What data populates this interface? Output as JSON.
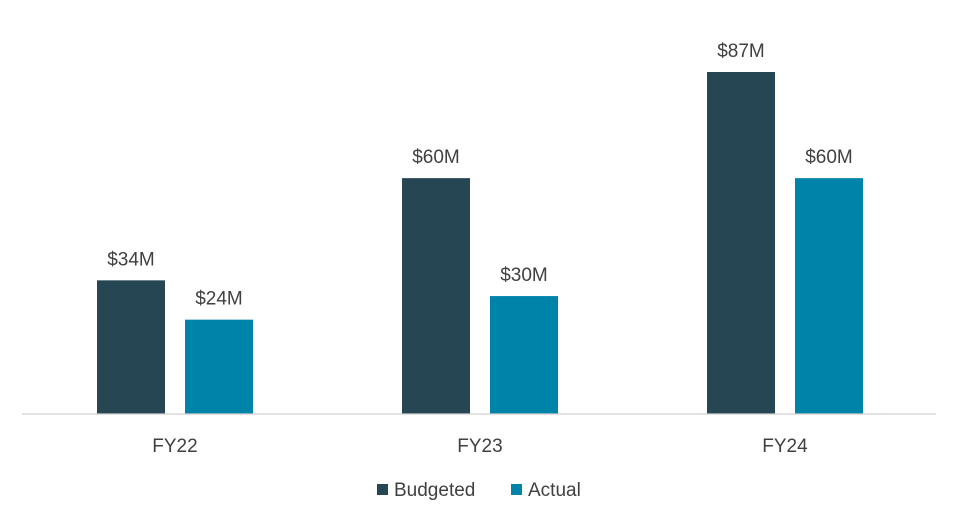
{
  "chart_data": {
    "type": "bar",
    "title": "",
    "xlabel": "",
    "ylabel": "",
    "categories": [
      "FY22",
      "FY23",
      "FY24"
    ],
    "series": [
      {
        "name": "Budgeted",
        "color": "#264653",
        "values": [
          34,
          60,
          87
        ],
        "labels": [
          "$34M",
          "$60M",
          "$87M"
        ]
      },
      {
        "name": "Actual",
        "color": "#0083A8",
        "values": [
          24,
          30,
          60
        ],
        "labels": [
          "$24M",
          "$30M",
          "$60M"
        ]
      }
    ],
    "ylim": [
      0,
      100
    ],
    "grid": false,
    "legend_position": "bottom-center",
    "unit": "$M"
  }
}
